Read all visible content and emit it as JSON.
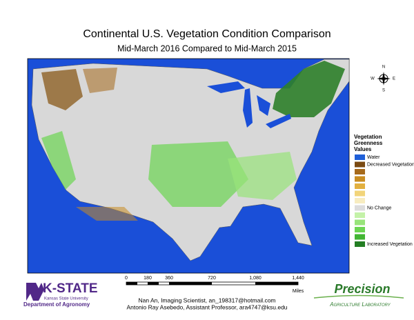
{
  "header": {
    "title": "Continental U.S. Vegetation Condition Comparison",
    "subtitle": "Mid-March 2016 Compared to Mid-March 2015"
  },
  "compass": {
    "n": "N",
    "e": "E",
    "s": "S",
    "w": "W"
  },
  "legend": {
    "title": [
      "Vegetation",
      "Greenness",
      "Values"
    ],
    "items": [
      {
        "color": "#1f5fd8",
        "label": "Water"
      },
      {
        "color": "#7a4a12",
        "label": "Decreased Vegetation"
      },
      {
        "color": "#a66a1c"
      },
      {
        "color": "#c98d22"
      },
      {
        "color": "#e2b040"
      },
      {
        "color": "#f2d47a"
      },
      {
        "color": "#f7ecc0"
      },
      {
        "color": "#dcdcdc",
        "label": "No Change"
      },
      {
        "color": "#c4f2a8"
      },
      {
        "color": "#98e47a"
      },
      {
        "color": "#6cd552"
      },
      {
        "color": "#42b533"
      },
      {
        "color": "#237e23",
        "label": "Increased Vegetation"
      }
    ]
  },
  "scale": {
    "labels": [
      "0",
      "180",
      "360",
      "720",
      "1,080",
      "1,440"
    ],
    "unit": "Miles"
  },
  "credits": [
    "Nan An, Imaging Scientist, an_198317@hotmail.com",
    "Antonio Ray Asebedo, Assistant Professor, ara4747@ksu.edu"
  ],
  "logos": {
    "kstate": "K-STATE",
    "kstate_sub": "Kansas State University",
    "department": "Department of Agronomy",
    "precision": "Precision",
    "precision_sub": "Agriculture Laboratory"
  }
}
